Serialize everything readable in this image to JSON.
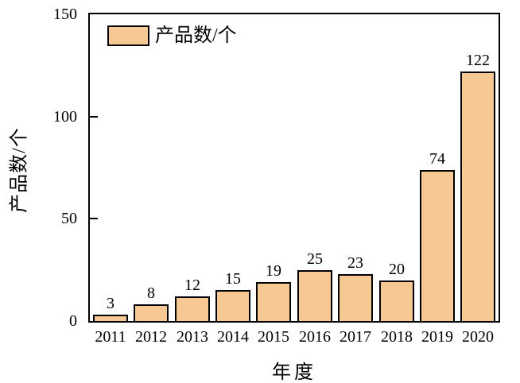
{
  "chart_data": {
    "type": "bar",
    "title": "",
    "categories": [
      "2011",
      "2012",
      "2013",
      "2014",
      "2015",
      "2016",
      "2017",
      "2018",
      "2019",
      "2020"
    ],
    "values": [
      3,
      8,
      12,
      15,
      19,
      25,
      23,
      20,
      74,
      122
    ],
    "xlabel": "年度",
    "ylabel": "产品数/个",
    "legend": [
      {
        "label": "产品数/个"
      }
    ],
    "legend_position": "top-left-inside",
    "ylim": [
      0,
      150
    ],
    "yticks": [
      0,
      50,
      100,
      150
    ],
    "grid": false,
    "colors": {
      "bar_fill": "#F6C994",
      "bar_border": "#000000",
      "axis": "#000000",
      "text": "#000000",
      "background": "#FFFFFF"
    }
  }
}
